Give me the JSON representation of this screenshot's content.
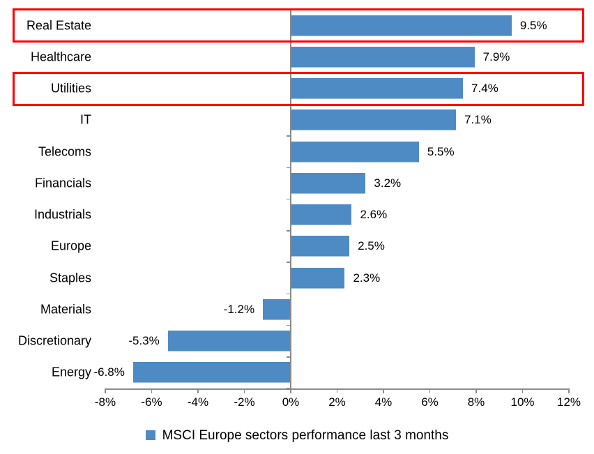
{
  "chart_data": {
    "type": "bar",
    "orientation": "horizontal",
    "title": "",
    "categories": [
      "Real Estate",
      "Healthcare",
      "Utilities",
      "IT",
      "Telecoms",
      "Financials",
      "Industrials",
      "Europe",
      "Staples",
      "Materials",
      "Discretionary",
      "Energy"
    ],
    "values": [
      9.5,
      7.9,
      7.4,
      7.1,
      5.5,
      3.2,
      2.6,
      2.5,
      2.3,
      -1.2,
      -5.3,
      -6.8
    ],
    "data_labels": [
      "9.5%",
      "7.9%",
      "7.4%",
      "7.1%",
      "5.5%",
      "3.2%",
      "2.6%",
      "2.5%",
      "2.3%",
      "-1.2%",
      "-5.3%",
      "-6.8%"
    ],
    "x_tick_values": [
      -8,
      -6,
      -4,
      -2,
      0,
      2,
      4,
      6,
      8,
      10,
      12
    ],
    "x_tick_labels": [
      "-8%",
      "-6%",
      "-4%",
      "-2%",
      "0%",
      "2%",
      "4%",
      "6%",
      "8%",
      "10%",
      "12%"
    ],
    "xlim": [
      -8,
      12
    ],
    "grid": false,
    "legend": {
      "label": "MSCI Europe sectors performance last 3 months",
      "position": "bottom"
    },
    "highlighted_categories": [
      "Real Estate",
      "Utilities"
    ],
    "colors": {
      "bar": "#4E8BC4",
      "highlight_box": "#FF0000",
      "axis": "#8A8A8A",
      "text": "#000000",
      "background": "#FFFFFF"
    }
  }
}
